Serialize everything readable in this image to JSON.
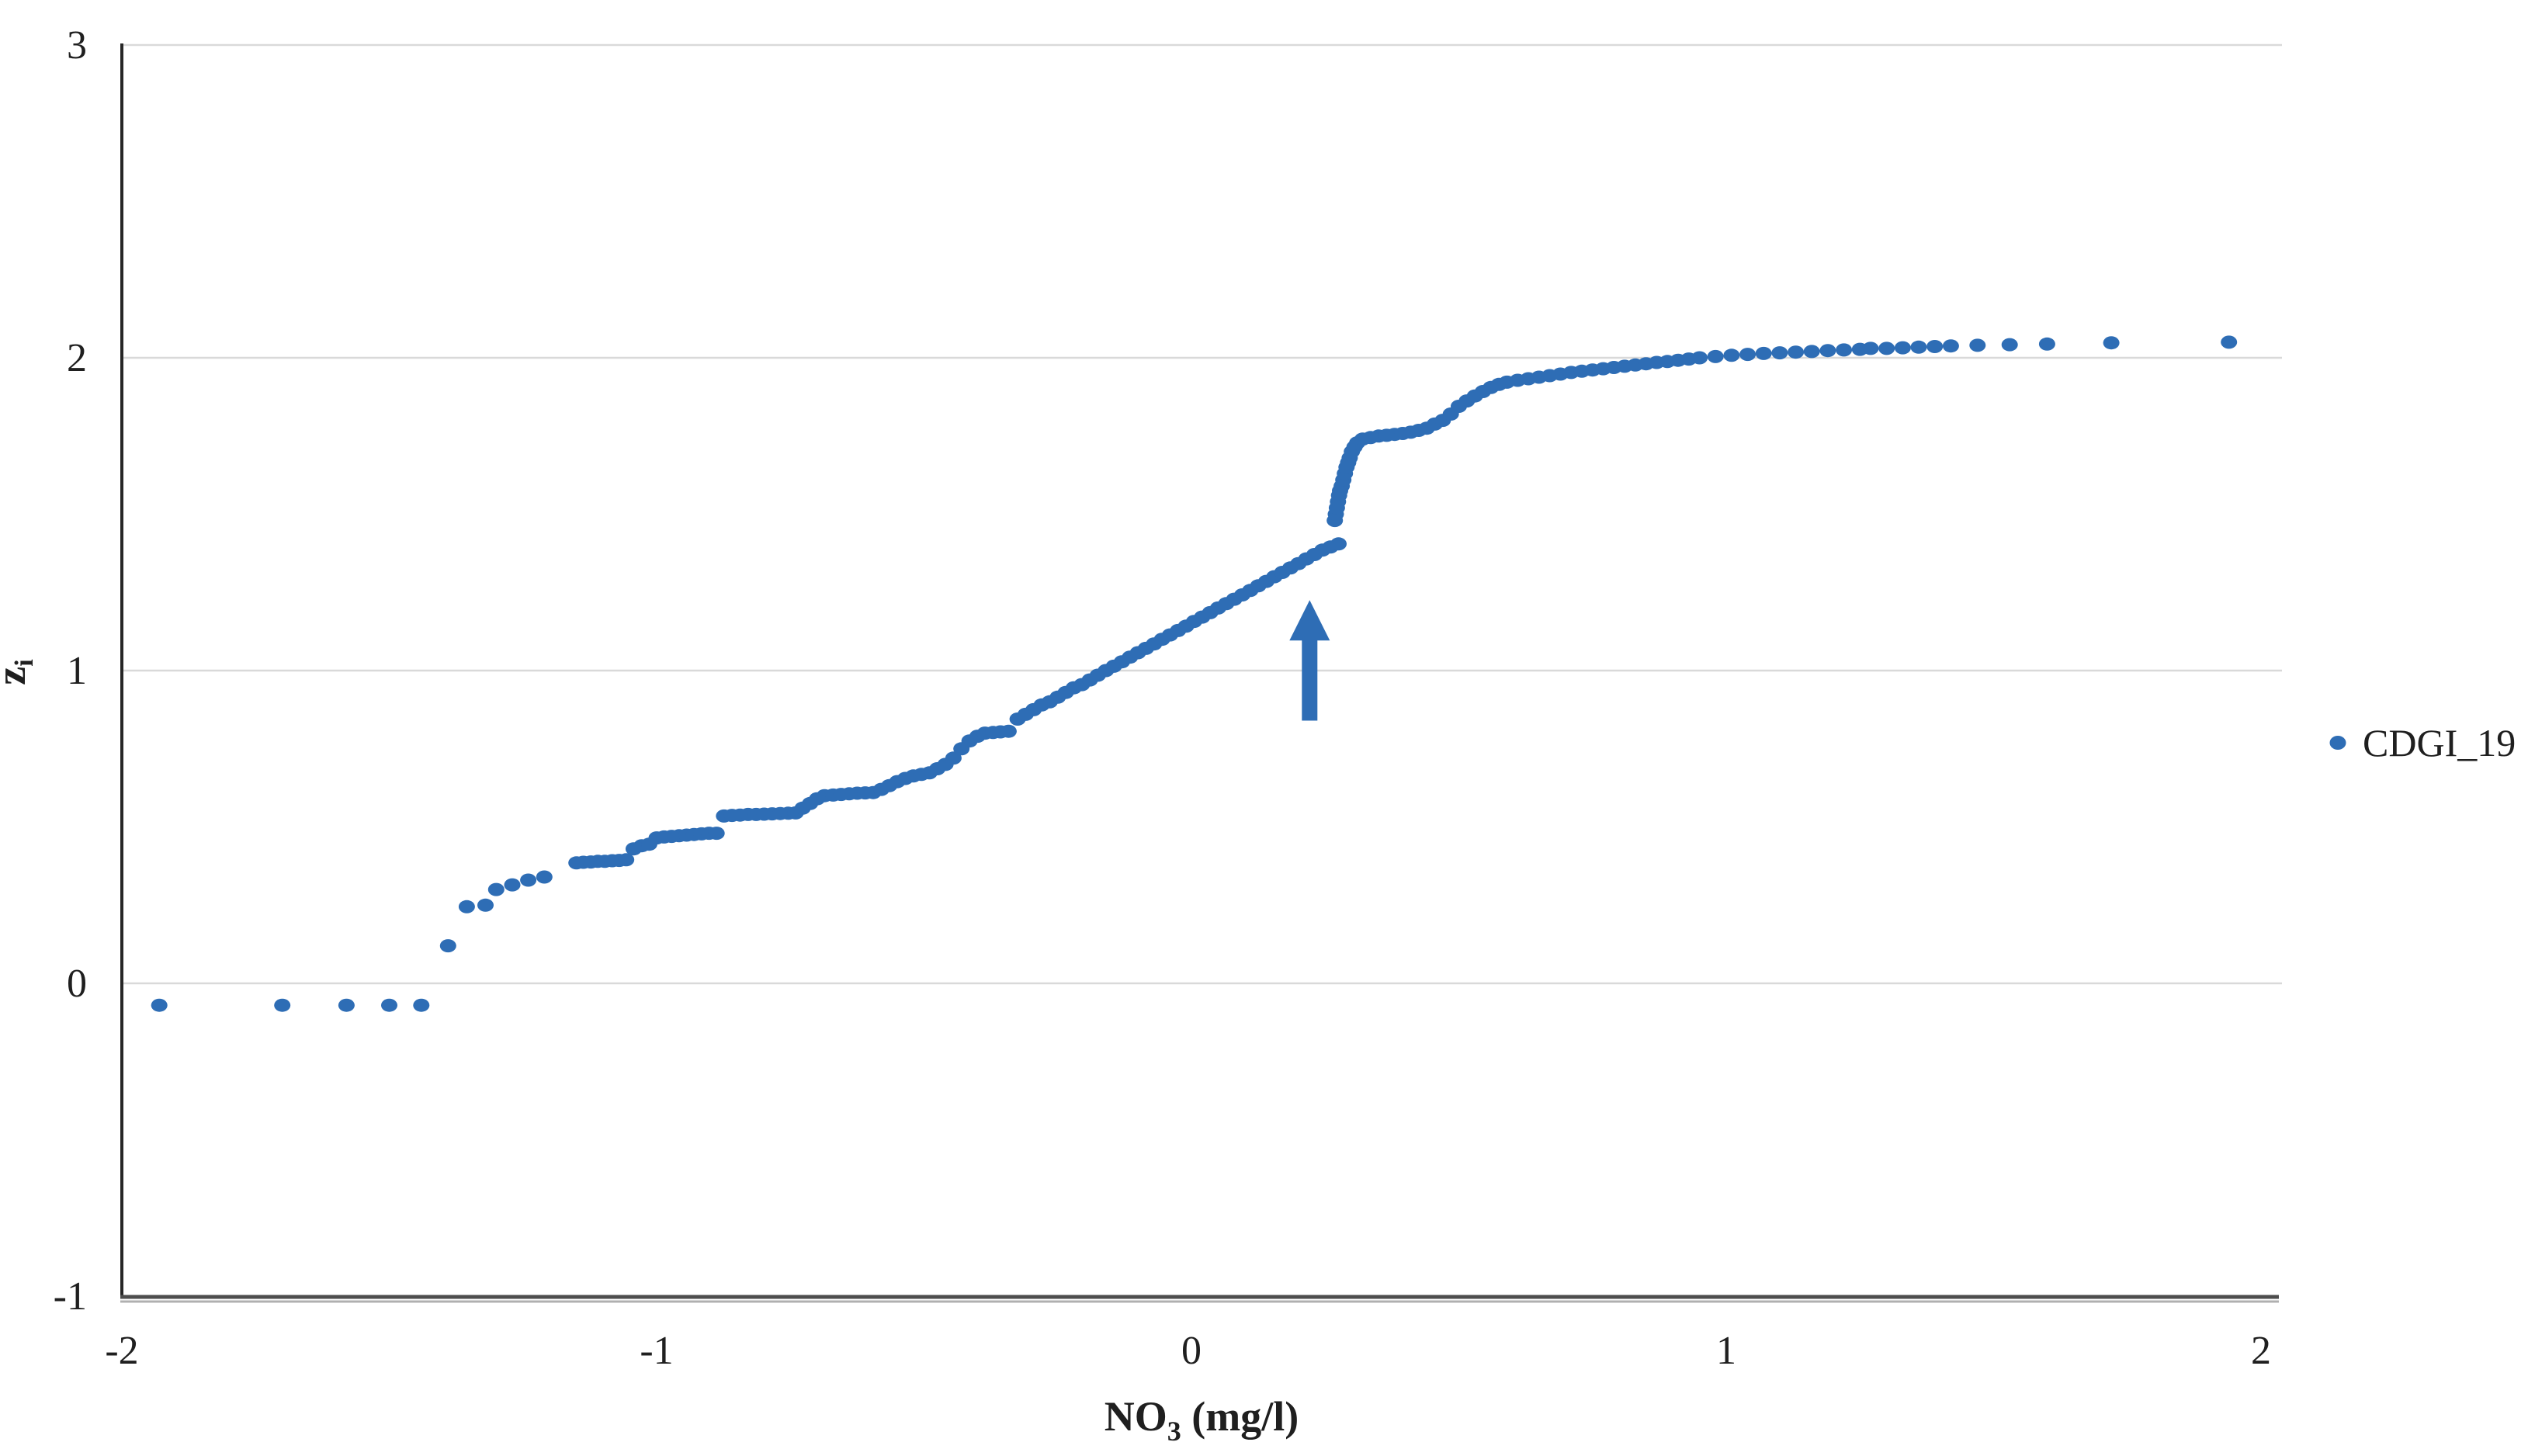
{
  "colors": {
    "background": "#ffffff",
    "point": "#2E6DB5",
    "grid": "#D9D9D9",
    "axis_left": "#262626",
    "axis_bottom": "#4D4D4D",
    "axis_bottom_shadow": "#B0B0B0",
    "text": "#1F1F1F"
  },
  "chart_data": {
    "type": "scatter",
    "title": "",
    "xlabel": {
      "base": "NO",
      "sub": "3",
      "rest": " (mg/l)"
    },
    "ylabel": {
      "base": "z",
      "sub": "i"
    },
    "xlim": [
      -2,
      2
    ],
    "ylim": [
      -1,
      3
    ],
    "x_ticks": [
      "-2",
      "-1",
      "0",
      "1",
      "2"
    ],
    "x_tick_values": [
      -2,
      -1,
      0,
      1,
      2
    ],
    "y_ticks": [
      "-1",
      "0",
      "1",
      "2",
      "3"
    ],
    "y_tick_values": [
      -1,
      0,
      1,
      2,
      3
    ],
    "grid": "horizontal-only",
    "legend": {
      "position": "right",
      "entries": [
        {
          "label": "CDGI_19",
          "marker": "circle",
          "color": "#2E6DB5"
        }
      ]
    },
    "annotations": [
      {
        "type": "arrow-up",
        "x": 0.221,
        "y_tail": 0.84,
        "y_head": 1.225,
        "color": "#2E6DB5"
      }
    ],
    "series": [
      {
        "name": "CDGI_19",
        "color": "#2E6DB5",
        "points": [
          [
            -1.93,
            -0.07
          ],
          [
            -1.7,
            -0.07
          ],
          [
            -1.58,
            -0.07
          ],
          [
            -1.5,
            -0.07
          ],
          [
            -1.44,
            -0.07
          ],
          [
            -1.39,
            0.12
          ],
          [
            -1.355,
            0.245
          ],
          [
            -1.32,
            0.25
          ],
          [
            -1.3,
            0.3
          ],
          [
            -1.27,
            0.315
          ],
          [
            -1.24,
            0.33
          ],
          [
            -1.21,
            0.34
          ],
          [
            -1.15,
            0.385
          ],
          [
            -1.137,
            0.387
          ],
          [
            -1.123,
            0.388
          ],
          [
            -1.11,
            0.39
          ],
          [
            -1.097,
            0.39
          ],
          [
            -1.083,
            0.392
          ],
          [
            -1.07,
            0.393
          ],
          [
            -1.057,
            0.395
          ],
          [
            -1.043,
            0.43
          ],
          [
            -1.028,
            0.44
          ],
          [
            -1.014,
            0.445
          ],
          [
            -1.0,
            0.465
          ],
          [
            -0.986,
            0.468
          ],
          [
            -0.972,
            0.47
          ],
          [
            -0.958,
            0.472
          ],
          [
            -0.944,
            0.474
          ],
          [
            -0.93,
            0.476
          ],
          [
            -0.916,
            0.478
          ],
          [
            -0.902,
            0.48
          ],
          [
            -0.888,
            0.48
          ],
          [
            -0.874,
            0.535
          ],
          [
            -0.859,
            0.537
          ],
          [
            -0.844,
            0.538
          ],
          [
            -0.829,
            0.54
          ],
          [
            -0.814,
            0.54
          ],
          [
            -0.799,
            0.541
          ],
          [
            -0.784,
            0.542
          ],
          [
            -0.769,
            0.543
          ],
          [
            -0.754,
            0.544
          ],
          [
            -0.74,
            0.545
          ],
          [
            -0.727,
            0.56
          ],
          [
            -0.713,
            0.575
          ],
          [
            -0.7,
            0.59
          ],
          [
            -0.686,
            0.6
          ],
          [
            -0.67,
            0.602
          ],
          [
            -0.655,
            0.604
          ],
          [
            -0.64,
            0.606
          ],
          [
            -0.625,
            0.608
          ],
          [
            -0.61,
            0.609
          ],
          [
            -0.595,
            0.61
          ],
          [
            -0.58,
            0.62
          ],
          [
            -0.565,
            0.632
          ],
          [
            -0.55,
            0.645
          ],
          [
            -0.535,
            0.655
          ],
          [
            -0.52,
            0.663
          ],
          [
            -0.505,
            0.668
          ],
          [
            -0.49,
            0.673
          ],
          [
            -0.475,
            0.686
          ],
          [
            -0.46,
            0.7
          ],
          [
            -0.445,
            0.72
          ],
          [
            -0.43,
            0.75
          ],
          [
            -0.415,
            0.775
          ],
          [
            -0.4,
            0.79
          ],
          [
            -0.386,
            0.8
          ],
          [
            -0.371,
            0.802
          ],
          [
            -0.357,
            0.804
          ],
          [
            -0.342,
            0.806
          ],
          [
            -0.325,
            0.845
          ],
          [
            -0.31,
            0.86
          ],
          [
            -0.295,
            0.875
          ],
          [
            -0.28,
            0.89
          ],
          [
            -0.265,
            0.9
          ],
          [
            -0.25,
            0.915
          ],
          [
            -0.235,
            0.93
          ],
          [
            -0.22,
            0.945
          ],
          [
            -0.205,
            0.955
          ],
          [
            -0.19,
            0.97
          ],
          [
            -0.175,
            0.985
          ],
          [
            -0.16,
            1.0
          ],
          [
            -0.145,
            1.014
          ],
          [
            -0.13,
            1.028
          ],
          [
            -0.115,
            1.043
          ],
          [
            -0.1,
            1.057
          ],
          [
            -0.085,
            1.071
          ],
          [
            -0.07,
            1.085
          ],
          [
            -0.055,
            1.1
          ],
          [
            -0.04,
            1.114
          ],
          [
            -0.025,
            1.128
          ],
          [
            -0.01,
            1.142
          ],
          [
            0.005,
            1.157
          ],
          [
            0.02,
            1.171
          ],
          [
            0.035,
            1.185
          ],
          [
            0.05,
            1.2
          ],
          [
            0.065,
            1.214
          ],
          [
            0.08,
            1.228
          ],
          [
            0.095,
            1.242
          ],
          [
            0.11,
            1.256
          ],
          [
            0.125,
            1.271
          ],
          [
            0.14,
            1.285
          ],
          [
            0.155,
            1.3
          ],
          [
            0.17,
            1.314
          ],
          [
            0.185,
            1.328
          ],
          [
            0.2,
            1.342
          ],
          [
            0.215,
            1.357
          ],
          [
            0.23,
            1.371
          ],
          [
            0.245,
            1.385
          ],
          [
            0.26,
            1.395
          ],
          [
            0.275,
            1.405
          ],
          [
            0.268,
            1.48
          ],
          [
            0.27,
            1.5
          ],
          [
            0.272,
            1.52
          ],
          [
            0.274,
            1.54
          ],
          [
            0.276,
            1.56
          ],
          [
            0.278,
            1.575
          ],
          [
            0.281,
            1.59
          ],
          [
            0.284,
            1.61
          ],
          [
            0.287,
            1.63
          ],
          [
            0.29,
            1.65
          ],
          [
            0.293,
            1.665
          ],
          [
            0.296,
            1.68
          ],
          [
            0.3,
            1.7
          ],
          [
            0.305,
            1.715
          ],
          [
            0.31,
            1.728
          ],
          [
            0.32,
            1.74
          ],
          [
            0.335,
            1.745
          ],
          [
            0.35,
            1.75
          ],
          [
            0.365,
            1.752
          ],
          [
            0.38,
            1.755
          ],
          [
            0.395,
            1.758
          ],
          [
            0.41,
            1.762
          ],
          [
            0.425,
            1.768
          ],
          [
            0.44,
            1.775
          ],
          [
            0.455,
            1.788
          ],
          [
            0.47,
            1.8
          ],
          [
            0.485,
            1.82
          ],
          [
            0.5,
            1.845
          ],
          [
            0.515,
            1.862
          ],
          [
            0.53,
            1.878
          ],
          [
            0.545,
            1.892
          ],
          [
            0.56,
            1.905
          ],
          [
            0.575,
            1.915
          ],
          [
            0.59,
            1.922
          ],
          [
            0.61,
            1.928
          ],
          [
            0.63,
            1.933
          ],
          [
            0.65,
            1.938
          ],
          [
            0.67,
            1.943
          ],
          [
            0.69,
            1.948
          ],
          [
            0.71,
            1.953
          ],
          [
            0.73,
            1.957
          ],
          [
            0.75,
            1.961
          ],
          [
            0.77,
            1.965
          ],
          [
            0.79,
            1.969
          ],
          [
            0.81,
            1.973
          ],
          [
            0.83,
            1.977
          ],
          [
            0.85,
            1.981
          ],
          [
            0.87,
            1.985
          ],
          [
            0.89,
            1.988
          ],
          [
            0.91,
            1.992
          ],
          [
            0.93,
            1.996
          ],
          [
            0.95,
            2.0
          ],
          [
            0.98,
            2.004
          ],
          [
            1.01,
            2.008
          ],
          [
            1.04,
            2.011
          ],
          [
            1.07,
            2.014
          ],
          [
            1.1,
            2.016
          ],
          [
            1.13,
            2.018
          ],
          [
            1.16,
            2.02
          ],
          [
            1.19,
            2.023
          ],
          [
            1.22,
            2.025
          ],
          [
            1.25,
            2.027
          ],
          [
            1.27,
            2.03
          ],
          [
            1.3,
            2.03
          ],
          [
            1.33,
            2.032
          ],
          [
            1.36,
            2.034
          ],
          [
            1.39,
            2.036
          ],
          [
            1.42,
            2.038
          ],
          [
            1.47,
            2.04
          ],
          [
            1.53,
            2.042
          ],
          [
            1.6,
            2.044
          ],
          [
            1.72,
            2.048
          ],
          [
            1.94,
            2.05
          ]
        ]
      }
    ]
  }
}
